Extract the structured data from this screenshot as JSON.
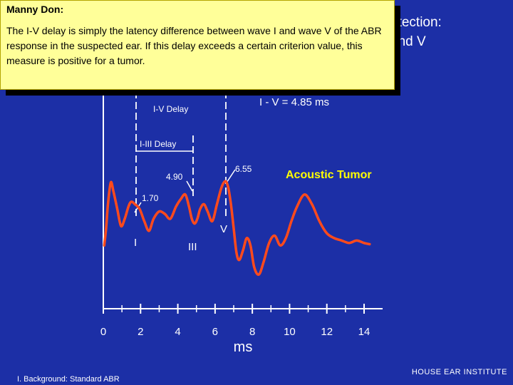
{
  "slide": {
    "background_color": "#1c2fa6",
    "title_partial": "etection:\n and V",
    "footer_left": "I. Background: Standard ABR",
    "footer_right": "HOUSE  EAR  INSTITUTE"
  },
  "note": {
    "heading": "Manny Don:",
    "text": "The I-V delay is simply the latency difference between wave I and wave V of the ABR response in the suspected ear.  If this delay exceeds a certain criterion value, this measure is positive for a tumor."
  },
  "chart_data": {
    "type": "line",
    "xlabel": "ms",
    "xlim": [
      0,
      14
    ],
    "x_ticks": [
      "0",
      "2",
      "4",
      "6",
      "8",
      "10",
      "12",
      "14"
    ],
    "series": [
      {
        "name": "Acoustic Tumor",
        "color": "#ff4a1c",
        "x": [
          0.05,
          0.15,
          0.25,
          0.4,
          0.55,
          0.75,
          0.95,
          1.15,
          1.35,
          1.5,
          1.7,
          1.95,
          2.2,
          2.45,
          2.7,
          3.0,
          3.3,
          3.6,
          3.9,
          4.15,
          4.4,
          4.6,
          4.75,
          4.9,
          5.05,
          5.2,
          5.4,
          5.6,
          5.85,
          6.1,
          6.35,
          6.55,
          6.7,
          6.85,
          7.0,
          7.15,
          7.3,
          7.5,
          7.7,
          7.9,
          8.1,
          8.35,
          8.6,
          8.9,
          9.2,
          9.5,
          9.8,
          10.1,
          10.4,
          10.8,
          11.2,
          11.6,
          12.0,
          12.4,
          12.8,
          13.2,
          13.6,
          14.0,
          14.3
        ],
        "y": [
          -1.3,
          -0.6,
          0.4,
          1.3,
          0.9,
          0.2,
          -0.5,
          -0.2,
          0.3,
          0.5,
          0.4,
          0.2,
          -0.3,
          -0.7,
          -0.2,
          0.1,
          0.0,
          -0.2,
          0.3,
          0.6,
          0.8,
          0.3,
          -0.2,
          -0.4,
          -0.2,
          0.2,
          0.4,
          0.1,
          -0.3,
          0.4,
          1.1,
          1.35,
          1.1,
          0.4,
          -0.6,
          -1.6,
          -1.9,
          -1.5,
          -1.0,
          -1.3,
          -2.2,
          -2.5,
          -2.0,
          -1.2,
          -0.9,
          -1.3,
          -1.0,
          -0.3,
          0.3,
          0.8,
          0.4,
          -0.3,
          -0.8,
          -1.0,
          -1.1,
          -1.2,
          -1.1,
          -1.2,
          -1.25
        ]
      }
    ],
    "annotations": {
      "peak_I_latency": "1.70",
      "peak_III_latency": "4.90",
      "peak_V_latency": "6.55",
      "wave_I_label": "I",
      "wave_III_label": "III",
      "wave_V_label": "V",
      "iv_delay_label": "I-V Delay",
      "iiii_delay_label": "I-III Delay",
      "iv_value_label": "I - V = 4.85 ms",
      "condition_label": "Acoustic Tumor"
    },
    "annotation_color": "#ffffff",
    "condition_color": "#ffff00"
  }
}
